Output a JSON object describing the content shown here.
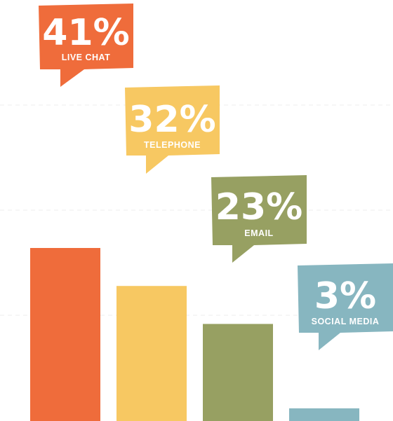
{
  "chart_data": {
    "type": "bar",
    "categories": [
      "LIVE CHAT",
      "TELEPHONE",
      "EMAIL",
      "SOCIAL MEDIA"
    ],
    "values": [
      41,
      32,
      23,
      3
    ],
    "value_labels": [
      "41%",
      "32%",
      "23%",
      "3%"
    ],
    "colors": [
      "#ef6c3b",
      "#f7c862",
      "#97a062",
      "#87b6c0"
    ],
    "grid": true,
    "title": "",
    "xlabel": "",
    "ylabel": ""
  }
}
